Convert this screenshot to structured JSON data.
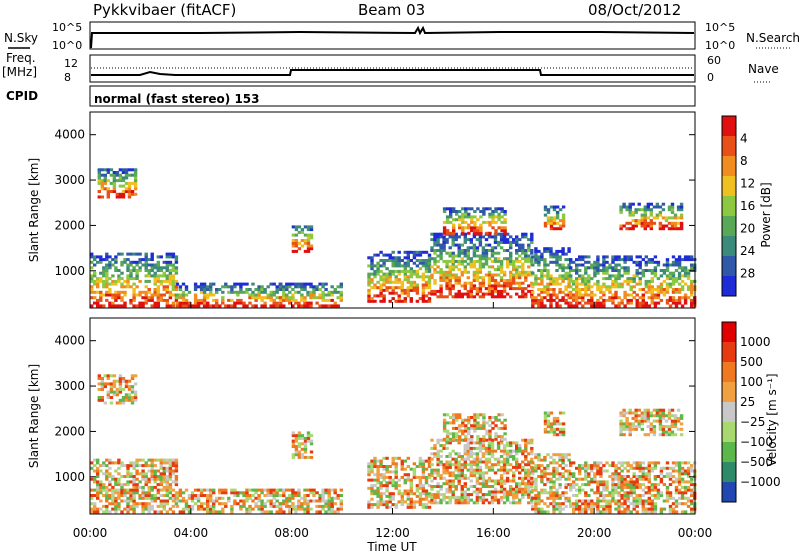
{
  "header": {
    "station": "Pykkvibaer (fitACF)",
    "beam": "Beam 03",
    "date": "08/Oct/2012"
  },
  "side_labels": {
    "nsky": "N.Sky",
    "nsearch": "N.Search",
    "freq": "Freq.",
    "freq_unit": "[MHz]",
    "nave": "Nave",
    "cpid": "CPID",
    "cpid_value": "normal (fast stereo) 153"
  },
  "noise_panel": {
    "left_ticks": [
      "10^5",
      "10^0"
    ],
    "right_ticks": [
      "10^5",
      "10^0"
    ]
  },
  "freq_panel": {
    "left_ticks": [
      "12",
      "8"
    ],
    "right_ticks": [
      "60",
      "0"
    ]
  },
  "chart_data": [
    {
      "type": "heatmap",
      "title": "Power",
      "ylabel": "Slant Range [km]",
      "xlabel": "Time UT",
      "x_ticks": [
        "00:00",
        "04:00",
        "08:00",
        "12:00",
        "16:00",
        "20:00",
        "00:00"
      ],
      "y_ticks": [
        1000,
        2000,
        3000,
        4000
      ],
      "ylim": [
        180,
        4500
      ],
      "xlim_hours": [
        0,
        24
      ],
      "colorbar": {
        "label": "Power [dB]",
        "ticks": [
          4,
          8,
          12,
          16,
          20,
          24,
          28
        ],
        "range": [
          0,
          32
        ],
        "colors": [
          "#1f2bd6",
          "#3058a8",
          "#3c8a7a",
          "#58a858",
          "#8cc840",
          "#f0c020",
          "#f08c20",
          "#e85018",
          "#e01010"
        ]
      }
    },
    {
      "type": "heatmap",
      "title": "Velocity",
      "ylabel": "Slant Range [km]",
      "xlabel": "Time UT",
      "x_ticks": [
        "00:00",
        "04:00",
        "08:00",
        "12:00",
        "16:00",
        "20:00",
        "00:00"
      ],
      "y_ticks": [
        1000,
        2000,
        3000,
        4000
      ],
      "ylim": [
        180,
        4500
      ],
      "xlim_hours": [
        0,
        24
      ],
      "colorbar": {
        "label": "Velocity [m s⁻¹]",
        "ticks": [
          "1000",
          "500",
          "100",
          "25",
          "−25",
          "−100",
          "−500",
          "−1000"
        ],
        "colors": [
          "#2048b0",
          "#2f8a6a",
          "#5cb84a",
          "#a8d870",
          "#c8c8c8",
          "#f0a040",
          "#f07820",
          "#e83a10",
          "#e00000"
        ]
      }
    }
  ],
  "time_axis_label": "Time UT"
}
